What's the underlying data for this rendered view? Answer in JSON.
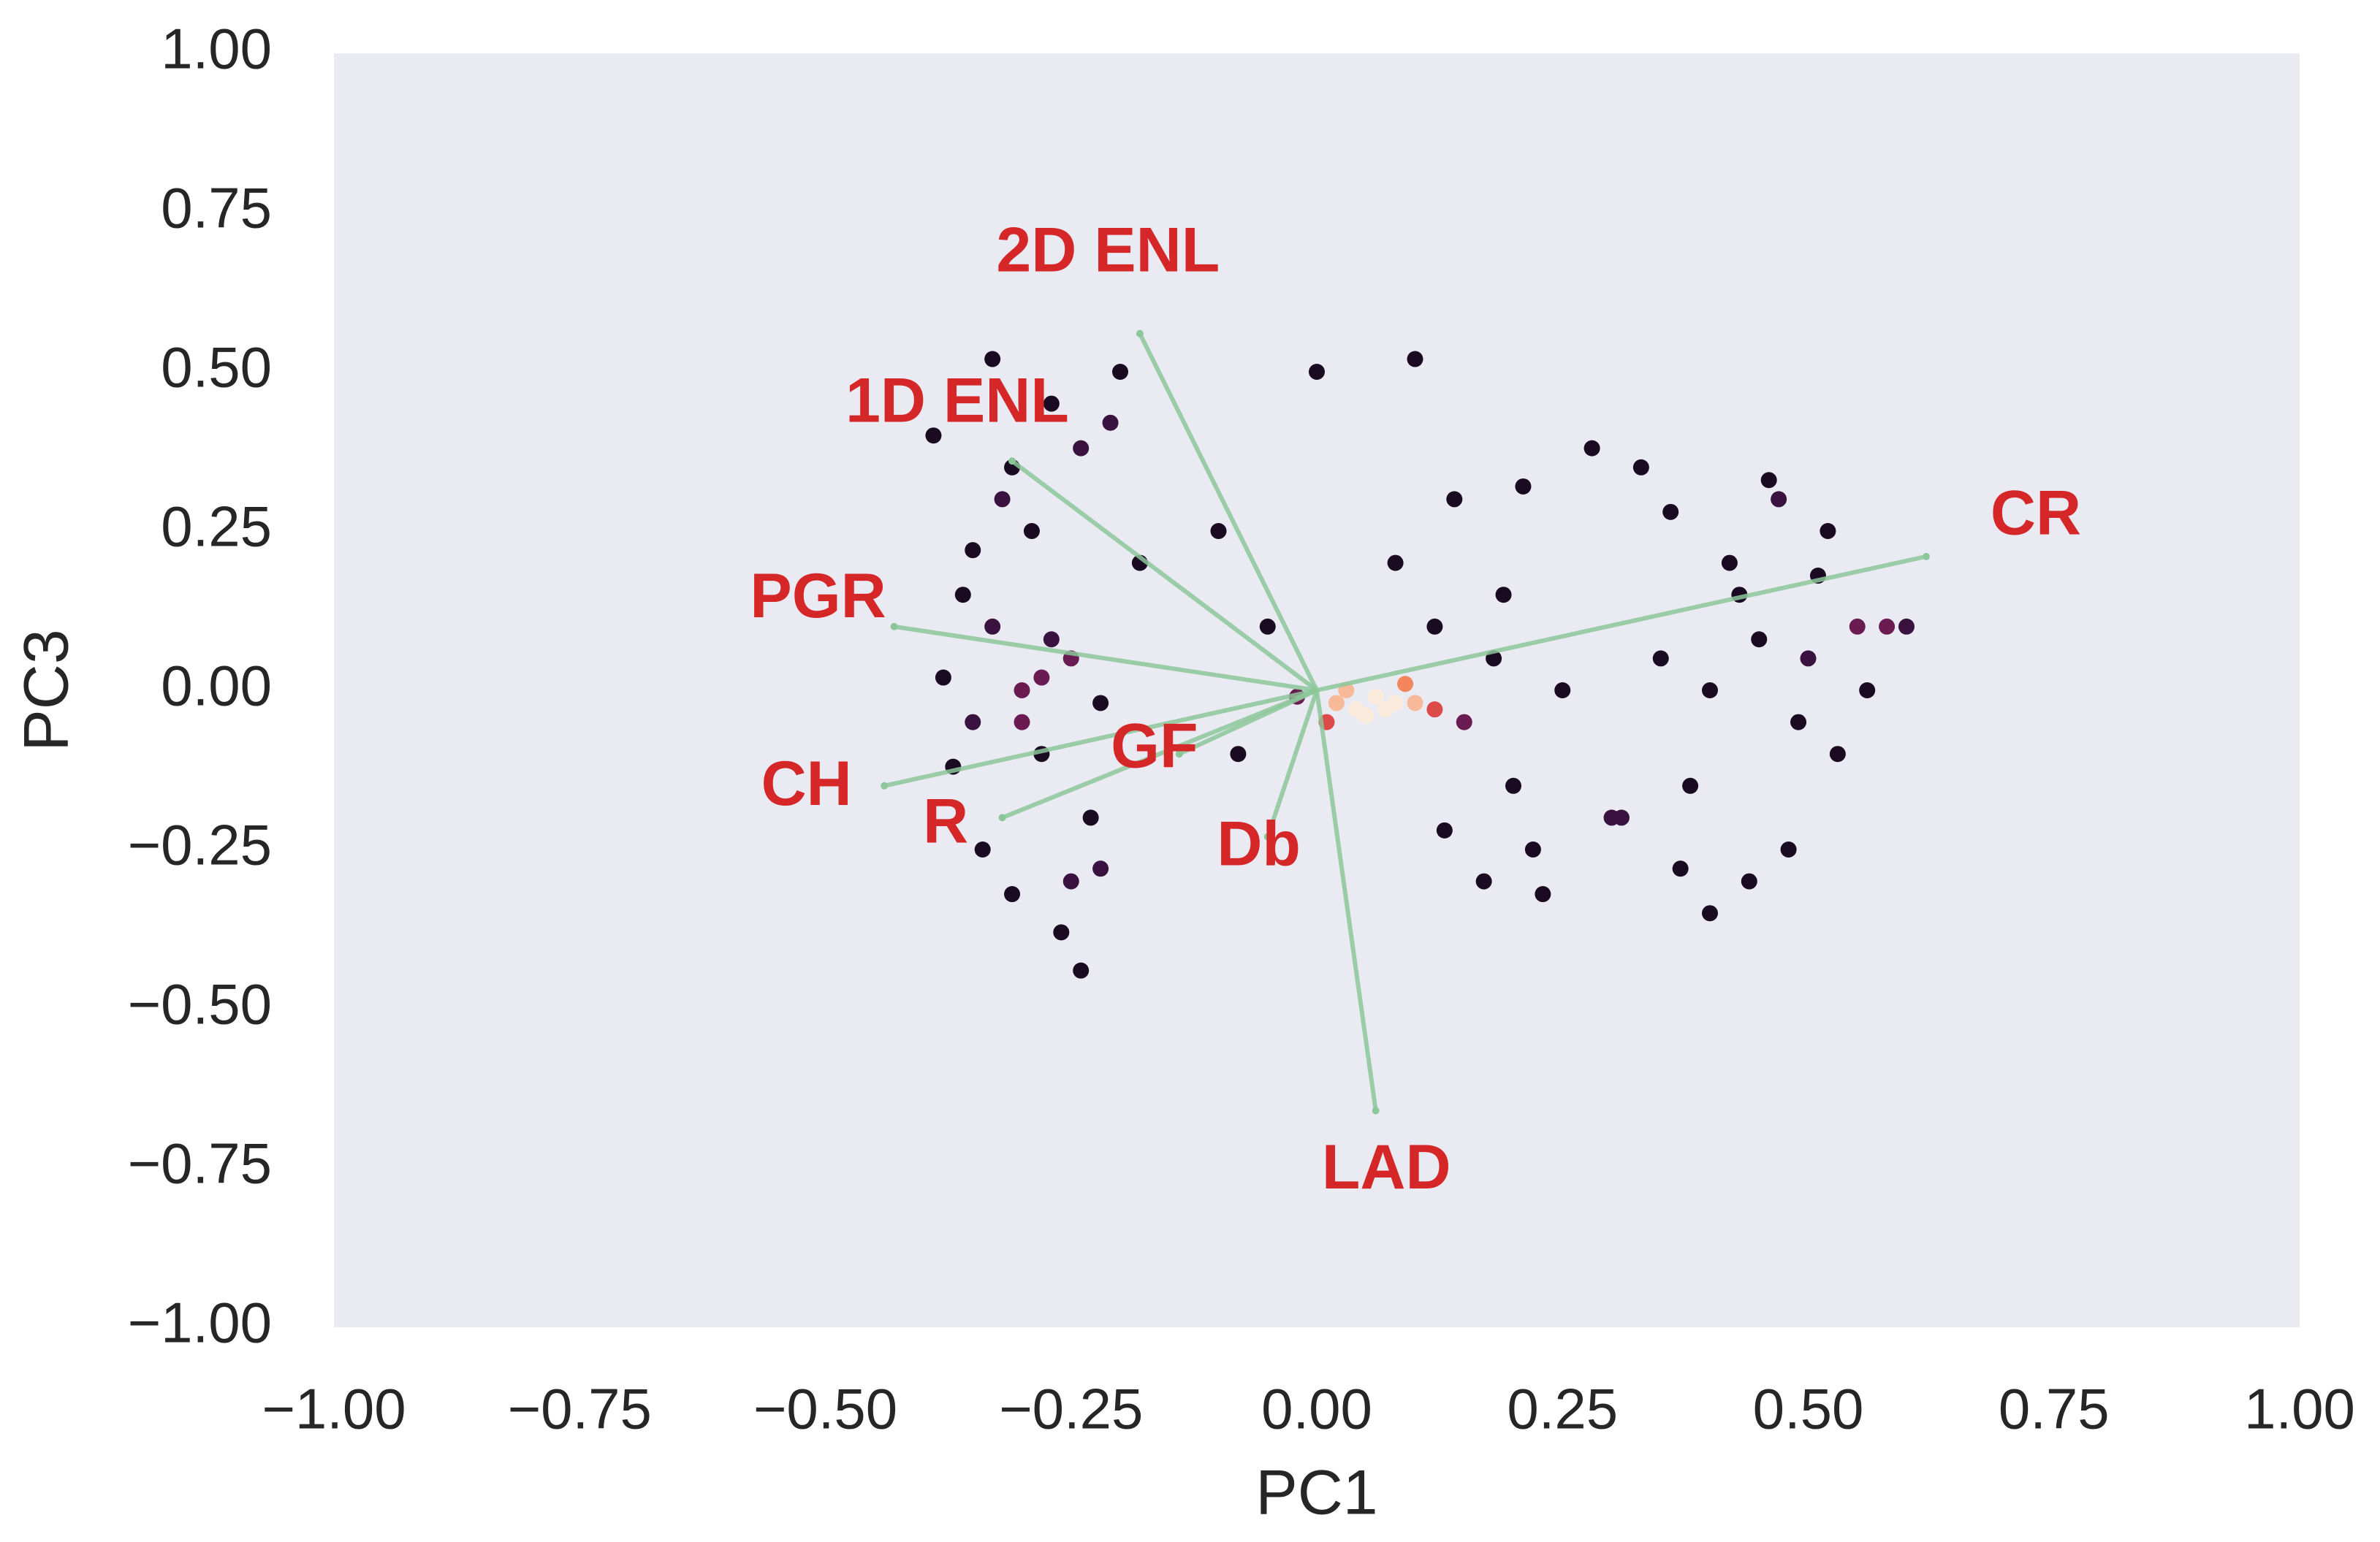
{
  "chart_data": {
    "type": "biplot",
    "xlabel": "PC1",
    "ylabel": "PC3",
    "xlim": [
      -1,
      1
    ],
    "ylim": [
      -1,
      1
    ],
    "xticks": [
      {
        "value": -1,
        "label": "−1.00"
      },
      {
        "value": -0.75,
        "label": "−0.75"
      },
      {
        "value": -0.5,
        "label": "−0.50"
      },
      {
        "value": -0.25,
        "label": "−0.25"
      },
      {
        "value": 0,
        "label": "0.00"
      },
      0.25,
      {
        "value": 0.5,
        "label": "0.50"
      },
      0.75,
      {
        "value": 1,
        "label": "1.00"
      }
    ],
    "yticks": [
      {
        "value": -1,
        "label": "−1.00"
      },
      {
        "value": -0.75,
        "label": "−0.75"
      },
      {
        "value": -0.5,
        "label": "−0.50"
      },
      {
        "value": -0.25,
        "label": "−0.25"
      },
      {
        "value": 0,
        "label": "0.00"
      },
      0.25,
      {
        "value": 0.5,
        "label": "0.50"
      },
      0.75,
      {
        "value": 1,
        "label": "1.00"
      }
    ],
    "grid": false,
    "background": "#eaeaf2",
    "points": {
      "x": [
        -0.38,
        -0.35,
        -0.33,
        -0.3,
        -0.28,
        -0.25,
        -0.22,
        -0.36,
        -0.32,
        -0.27,
        -0.24,
        -0.2,
        -0.34,
        -0.31,
        -0.26,
        -0.23,
        -0.29,
        -0.37,
        -0.18,
        -0.21,
        -0.3,
        -0.27,
        -0.33,
        -0.25,
        -0.39,
        -0.28,
        -0.22,
        -0.35,
        -0.24,
        -0.31,
        0.02,
        0.04,
        0.06,
        0.03,
        0.05,
        0.08,
        0.01,
        0.07,
        0.1,
        -0.02,
        0.12,
        0.09,
        0.15,
        0.18,
        0.2,
        0.12,
        0.22,
        0.25,
        0.14,
        0.1,
        0.17,
        0.28,
        0.3,
        0.08,
        0.19,
        0.23,
        -0.05,
        -0.08,
        0.0,
        -0.1,
        0.13,
        0.21,
        0.35,
        0.4,
        0.45,
        0.5,
        0.55,
        0.38,
        0.42,
        0.48,
        0.52,
        0.33,
        0.44,
        0.58,
        0.36,
        0.47,
        0.53,
        0.4,
        0.31,
        0.56,
        0.6,
        0.43,
        0.49,
        0.37,
        0.46,
        0.51
      ],
      "y": [
        0.02,
        -0.05,
        0.1,
        0.0,
        -0.1,
        0.05,
        -0.02,
        0.15,
        0.3,
        0.45,
        0.38,
        0.5,
        -0.25,
        -0.32,
        -0.38,
        -0.2,
        0.25,
        -0.12,
        0.2,
        0.42,
        -0.05,
        0.08,
        0.52,
        -0.3,
        0.4,
        0.02,
        -0.28,
        0.22,
        -0.44,
        0.35,
        -0.02,
        -0.03,
        -0.01,
        0.0,
        -0.04,
        -0.02,
        -0.05,
        -0.03,
        -0.02,
        -0.01,
        -0.03,
        0.01,
        -0.05,
        0.05,
        -0.15,
        0.1,
        -0.25,
        0.0,
        0.3,
        0.52,
        -0.3,
        0.38,
        -0.2,
        0.2,
        0.15,
        -0.32,
        0.1,
        -0.1,
        0.5,
        0.25,
        -0.22,
        0.32,
        0.05,
        0.0,
        0.08,
        0.05,
        0.1,
        -0.15,
        0.2,
        -0.25,
        0.25,
        0.35,
        -0.3,
        0.1,
        0.28,
        0.3,
        -0.1,
        -0.35,
        -0.2,
        0.0,
        0.1,
        0.15,
        -0.05,
        -0.28,
        0.33,
        0.18
      ]
    },
    "loadings": {
      "names": [
        "2D ENL",
        "1D ENL",
        "CR",
        "PGR",
        "CH",
        "R",
        "GF",
        "Db",
        "LAD"
      ],
      "x": [
        -0.18,
        -0.31,
        0.62,
        -0.43,
        -0.44,
        -0.32,
        -0.14,
        -0.05,
        0.06
      ],
      "y": [
        0.56,
        0.36,
        0.21,
        0.1,
        -0.15,
        -0.2,
        -0.1,
        -0.23,
        -0.66
      ],
      "color": "#8cc79a",
      "label_color": "#d62728"
    }
  }
}
